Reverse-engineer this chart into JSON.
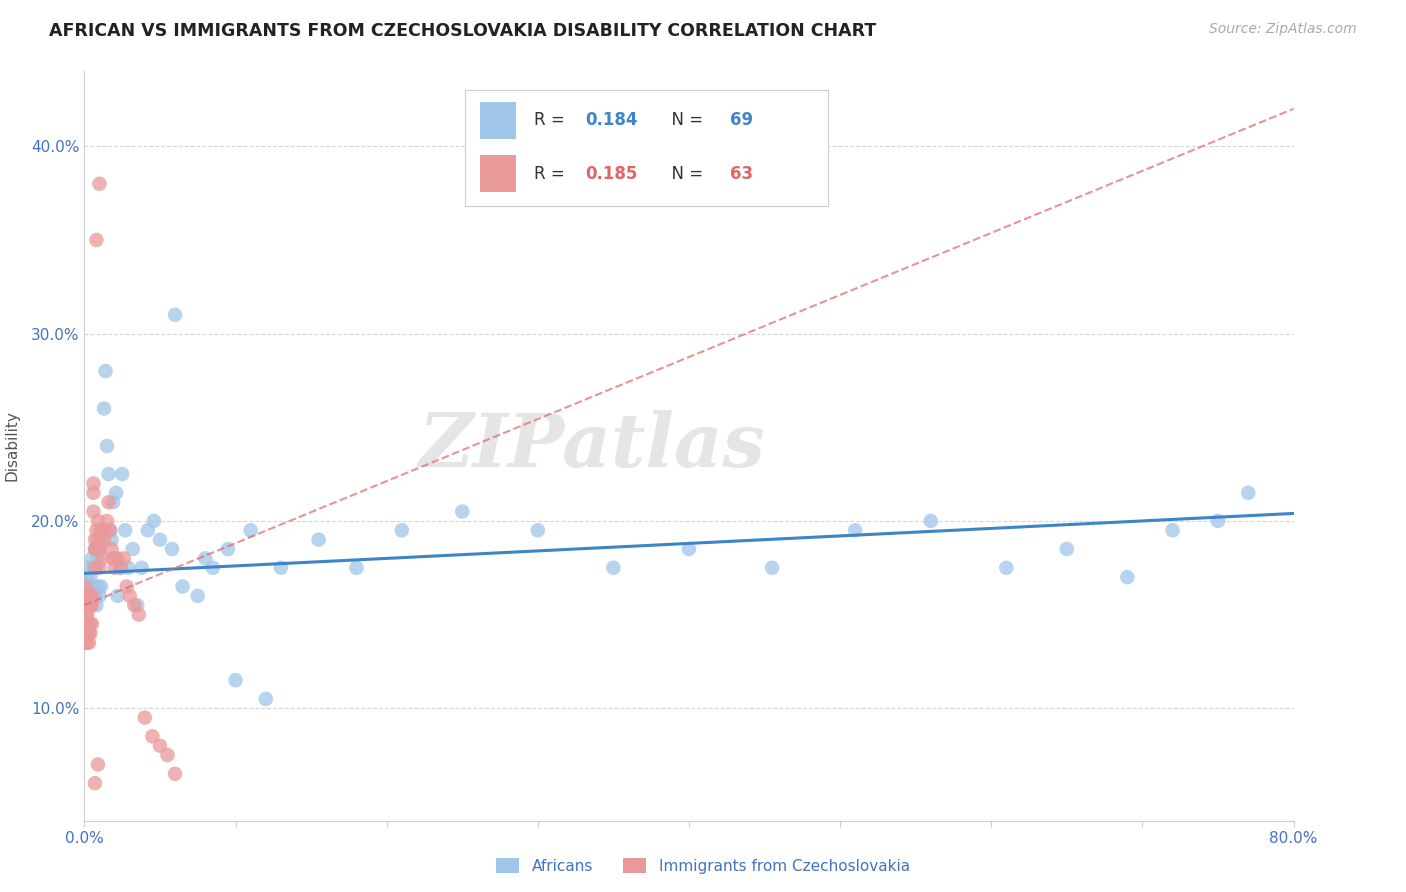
{
  "title": "AFRICAN VS IMMIGRANTS FROM CZECHOSLOVAKIA DISABILITY CORRELATION CHART",
  "source": "Source: ZipAtlas.com",
  "ylabel": "Disability",
  "watermark": "ZIPatlas",
  "xlim": [
    0.0,
    0.8
  ],
  "ylim": [
    0.04,
    0.44
  ],
  "xticks": [
    0.0,
    0.1,
    0.2,
    0.3,
    0.4,
    0.5,
    0.6,
    0.7,
    0.8
  ],
  "xticklabels": [
    "0.0%",
    "",
    "",
    "",
    "",
    "",
    "",
    "",
    "80.0%"
  ],
  "yticks": [
    0.1,
    0.2,
    0.3,
    0.4
  ],
  "yticklabels": [
    "10.0%",
    "20.0%",
    "30.0%",
    "40.0%"
  ],
  "african_R": "0.184",
  "african_N": "69",
  "czech_R": "0.185",
  "czech_N": "63",
  "african_color": "#9fc5e8",
  "czech_color": "#ea9999",
  "african_line_color": "#3d85c8",
  "czech_line_color": "#e06666",
  "grid_color": "#cccccc",
  "background_color": "#ffffff",
  "tick_color": "#4472c4",
  "label_color": "#4472c4",
  "african_line_y_start": 0.172,
  "african_line_y_end": 0.204,
  "czech_line_y_start": 0.155,
  "czech_line_y_end": 0.42,
  "african_scatter_x": [
    0.001,
    0.002,
    0.002,
    0.003,
    0.003,
    0.004,
    0.004,
    0.005,
    0.005,
    0.006,
    0.006,
    0.007,
    0.007,
    0.008,
    0.008,
    0.009,
    0.009,
    0.01,
    0.01,
    0.011,
    0.011,
    0.012,
    0.013,
    0.014,
    0.015,
    0.016,
    0.017,
    0.018,
    0.019,
    0.02,
    0.021,
    0.022,
    0.024,
    0.025,
    0.027,
    0.029,
    0.032,
    0.035,
    0.038,
    0.042,
    0.046,
    0.05,
    0.058,
    0.065,
    0.075,
    0.085,
    0.095,
    0.11,
    0.13,
    0.155,
    0.18,
    0.21,
    0.25,
    0.3,
    0.35,
    0.4,
    0.455,
    0.51,
    0.56,
    0.61,
    0.65,
    0.69,
    0.72,
    0.75,
    0.77,
    0.06,
    0.08,
    0.1,
    0.12
  ],
  "african_scatter_y": [
    0.165,
    0.155,
    0.17,
    0.16,
    0.175,
    0.155,
    0.17,
    0.16,
    0.18,
    0.165,
    0.175,
    0.16,
    0.185,
    0.155,
    0.175,
    0.165,
    0.18,
    0.16,
    0.185,
    0.165,
    0.195,
    0.19,
    0.26,
    0.28,
    0.24,
    0.225,
    0.195,
    0.19,
    0.21,
    0.18,
    0.215,
    0.16,
    0.175,
    0.225,
    0.195,
    0.175,
    0.185,
    0.155,
    0.175,
    0.195,
    0.2,
    0.19,
    0.185,
    0.165,
    0.16,
    0.175,
    0.185,
    0.195,
    0.175,
    0.19,
    0.175,
    0.195,
    0.205,
    0.195,
    0.175,
    0.185,
    0.175,
    0.195,
    0.2,
    0.175,
    0.185,
    0.17,
    0.195,
    0.2,
    0.215,
    0.31,
    0.18,
    0.115,
    0.105
  ],
  "czech_scatter_x": [
    0.001,
    0.001,
    0.001,
    0.001,
    0.001,
    0.001,
    0.001,
    0.002,
    0.002,
    0.002,
    0.002,
    0.002,
    0.002,
    0.003,
    0.003,
    0.003,
    0.003,
    0.003,
    0.004,
    0.004,
    0.004,
    0.004,
    0.005,
    0.005,
    0.005,
    0.006,
    0.006,
    0.006,
    0.007,
    0.007,
    0.007,
    0.008,
    0.008,
    0.009,
    0.009,
    0.01,
    0.01,
    0.011,
    0.012,
    0.013,
    0.014,
    0.015,
    0.016,
    0.017,
    0.018,
    0.019,
    0.02,
    0.022,
    0.024,
    0.026,
    0.028,
    0.03,
    0.033,
    0.036,
    0.04,
    0.045,
    0.05,
    0.055,
    0.06,
    0.01,
    0.008,
    0.009,
    0.007
  ],
  "czech_scatter_y": [
    0.15,
    0.155,
    0.16,
    0.165,
    0.145,
    0.14,
    0.135,
    0.15,
    0.155,
    0.16,
    0.145,
    0.14,
    0.135,
    0.155,
    0.16,
    0.145,
    0.14,
    0.135,
    0.155,
    0.16,
    0.145,
    0.14,
    0.16,
    0.155,
    0.145,
    0.22,
    0.215,
    0.205,
    0.19,
    0.185,
    0.175,
    0.195,
    0.185,
    0.2,
    0.19,
    0.175,
    0.185,
    0.195,
    0.18,
    0.19,
    0.195,
    0.2,
    0.21,
    0.195,
    0.185,
    0.18,
    0.175,
    0.18,
    0.175,
    0.18,
    0.165,
    0.16,
    0.155,
    0.15,
    0.095,
    0.085,
    0.08,
    0.075,
    0.065,
    0.38,
    0.35,
    0.07,
    0.06
  ]
}
